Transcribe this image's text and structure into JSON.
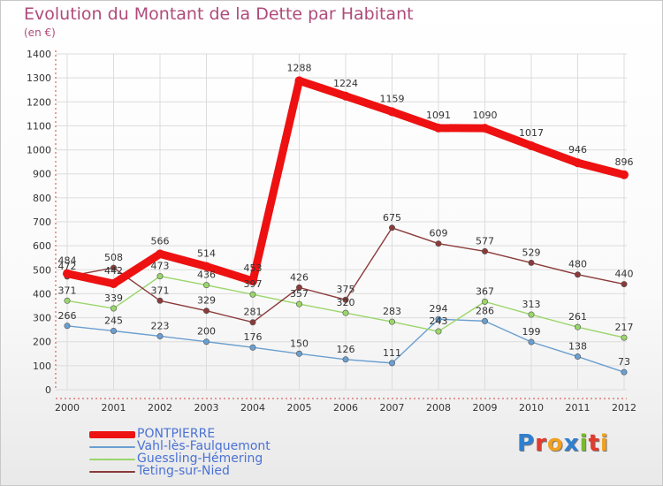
{
  "title": "Evolution du Montant de la Dette par Habitant",
  "subtitle": "(en €)",
  "logo_letters": [
    "P",
    "r",
    "o",
    "x",
    "i",
    "t",
    "i"
  ],
  "logo_colors": [
    "#2f80d0",
    "#e23b2e",
    "#f0a020",
    "#2f80d0",
    "#7ab830",
    "#e23b2e",
    "#f0a020"
  ],
  "chart_data": {
    "type": "line",
    "x": [
      "2000",
      "2001",
      "2002",
      "2003",
      "2004",
      "2005",
      "2006",
      "2007",
      "2008",
      "2009",
      "2010",
      "2011",
      "2012"
    ],
    "ylim": [
      0,
      1400
    ],
    "yticks": [
      0,
      100,
      200,
      300,
      400,
      500,
      600,
      700,
      800,
      900,
      1000,
      1100,
      1200,
      1300,
      1400
    ],
    "grid": true,
    "legend_position": "bottom-left",
    "series": [
      {
        "name": "PONTPIERRE",
        "color": "#ee1111",
        "values": [
          484,
          442,
          566,
          514,
          453,
          1288,
          1224,
          1159,
          1091,
          1090,
          1017,
          946,
          896
        ]
      },
      {
        "name": "Vahl-lès-Faulquemont",
        "color": "#6a9fd0",
        "values": [
          266,
          245,
          223,
          200,
          176,
          150,
          126,
          111,
          294,
          286,
          199,
          138,
          73
        ]
      },
      {
        "name": "Guessling-Hémering",
        "color": "#9ad66a",
        "values": [
          371,
          339,
          473,
          436,
          397,
          357,
          320,
          283,
          243,
          367,
          313,
          261,
          217
        ]
      },
      {
        "name": "Teting-sur-Nied",
        "color": "#8b3a3a",
        "values": [
          472,
          508,
          371,
          329,
          281,
          426,
          375,
          675,
          609,
          577,
          529,
          480,
          440
        ]
      }
    ]
  }
}
